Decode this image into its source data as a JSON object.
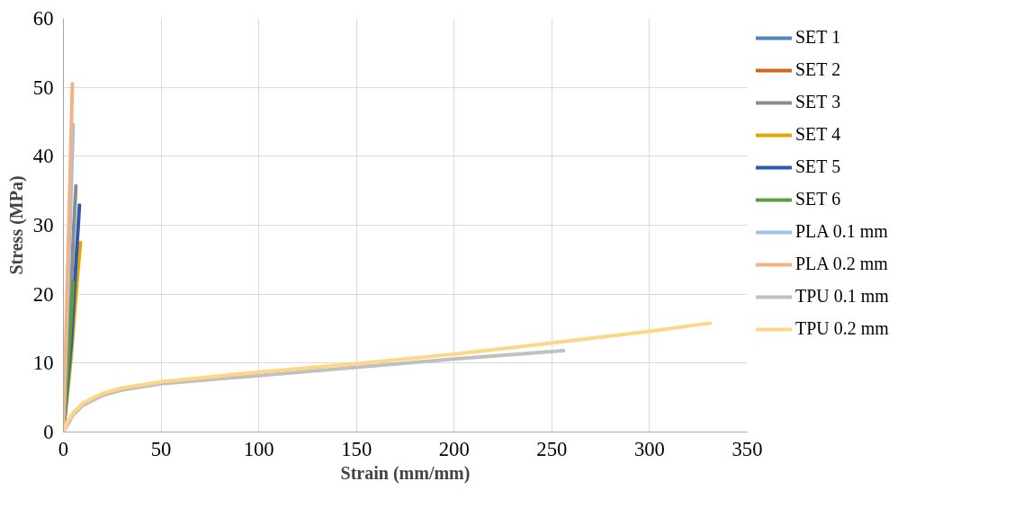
{
  "chart_data": {
    "type": "line",
    "xlabel": "Strain (mm/mm)",
    "ylabel": "Stress (MPa)",
    "xlim": [
      0,
      350
    ],
    "ylim": [
      0,
      60
    ],
    "xticks": [
      0,
      50,
      100,
      150,
      200,
      250,
      300,
      350
    ],
    "yticks": [
      0,
      10,
      20,
      30,
      40,
      50,
      60
    ],
    "grid": true,
    "legend": "right",
    "marker": "none",
    "line_style": "solid",
    "series": [
      {
        "name": "SET 1",
        "color": "#4f86c0"
      },
      {
        "name": "SET 2",
        "color": "#d0661e"
      },
      {
        "name": "SET 3",
        "color": "#8c8c8c",
        "x": [
          0,
          3,
          5,
          6.4
        ],
        "values": [
          0,
          15,
          28,
          35.7
        ]
      },
      {
        "name": "SET 4",
        "color": "#e3a600",
        "x": [
          0,
          4,
          7,
          8.7
        ],
        "values": [
          0,
          11,
          22,
          27.5
        ]
      },
      {
        "name": "SET 5",
        "color": "#2e5aac",
        "x": [
          0,
          4,
          6.5,
          8.2
        ],
        "values": [
          0,
          13,
          25,
          32.9
        ]
      },
      {
        "name": "SET 6",
        "color": "#5e9a3e",
        "x": [
          0,
          2.5,
          5.0
        ],
        "values": [
          0,
          10,
          21.7
        ]
      },
      {
        "name": "PLA 0.1 mm",
        "color": "#9dc3e6",
        "x": [
          0,
          2.5,
          5.0
        ],
        "values": [
          0,
          22,
          44.6
        ]
      },
      {
        "name": "PLA 0.2 mm",
        "color": "#f4b183",
        "x": [
          0,
          2.3,
          4.6
        ],
        "values": [
          0,
          25,
          50.5
        ]
      },
      {
        "name": "TPU 0.1 mm",
        "color": "#c0c0c0",
        "x": [
          0,
          5,
          10,
          20,
          30,
          50,
          75,
          100,
          150,
          200,
          256
        ],
        "values": [
          0,
          2.5,
          3.9,
          5.3,
          6.1,
          7.0,
          7.6,
          8.2,
          9.4,
          10.6,
          11.8
        ]
      },
      {
        "name": "TPU 0.2 mm",
        "color": "#ffd685",
        "x": [
          0,
          2,
          5,
          10,
          20,
          30,
          50,
          75,
          100,
          150,
          200,
          250,
          300,
          331
        ],
        "values": [
          0,
          1.5,
          2.8,
          4.2,
          5.6,
          6.4,
          7.3,
          8.0,
          8.7,
          9.9,
          11.3,
          12.9,
          14.6,
          15.8
        ]
      }
    ]
  }
}
